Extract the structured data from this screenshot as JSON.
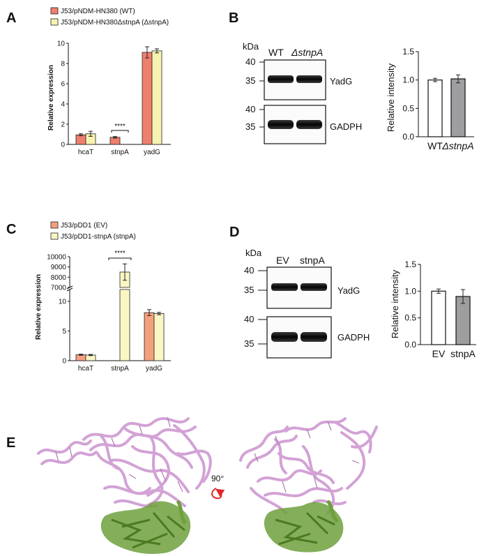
{
  "colors": {
    "wt_bar": "#ee7f6e",
    "mut_bar": "#f7f3b0",
    "ev_bar": "#f4a07e",
    "stnpA_bar": "#fbf7c5",
    "intensity_wt": "#ffffff",
    "intensity_mut": "#9e9ea0",
    "rna": "#d3a2d6",
    "protein": "#6ea03c",
    "rotate_arrow": "#e0262a"
  },
  "panels": {
    "A": {
      "letter": "A",
      "legend": [
        "J53/pNDM-HN380 (WT)",
        "J53/pNDM-HN380ΔstnpA (ΔstnpA)"
      ],
      "ylabel": "Relative expression",
      "significance": "****"
    },
    "B": {
      "letter": "B",
      "kda": "kDa",
      "lanes": [
        "WT",
        "ΔstnpA"
      ],
      "marker_top": [
        "40",
        "35"
      ],
      "marker_bottom": [
        "40",
        "35"
      ],
      "protein_top": "YadG",
      "protein_bottom": "GADPH",
      "ylabel": "Relative intensity"
    },
    "C": {
      "letter": "C",
      "legend": [
        "J53/pDD1 (EV)",
        "J53/pDD1-stnpA (stnpA)"
      ],
      "ylabel": "Relative expression",
      "significance": "****"
    },
    "D": {
      "letter": "D",
      "kda": "kDa",
      "lanes": [
        "EV",
        "stnpA"
      ],
      "marker_top": [
        "40",
        "35"
      ],
      "marker_bottom": [
        "40",
        "35"
      ],
      "protein_top": "YadG",
      "protein_bottom": "GADPH",
      "ylabel": "Relative intensity"
    },
    "E": {
      "letter": "E",
      "rotation": "90°"
    }
  },
  "chart_data": [
    {
      "panel": "A",
      "type": "bar",
      "categories": [
        "hcaT",
        "stnpA",
        "yadG"
      ],
      "series": [
        {
          "name": "J53/pNDM-HN380 (WT)",
          "values": [
            0.95,
            0.7,
            9.1
          ],
          "errors": [
            0.1,
            0.08,
            0.55
          ]
        },
        {
          "name": "J53/pNDM-HN380ΔstnpA (ΔstnpA)",
          "values": [
            1.05,
            0,
            9.25
          ],
          "errors": [
            0.25,
            0,
            0.2
          ]
        }
      ],
      "ylabel": "Relative expression",
      "yticks": [
        0,
        2,
        4,
        6,
        8,
        10
      ],
      "ylim": [
        0,
        10
      ]
    },
    {
      "panel": "B",
      "type": "bar",
      "categories": [
        "WT",
        "ΔstnpA"
      ],
      "values": [
        1.0,
        1.02
      ],
      "errors": [
        0.03,
        0.07
      ],
      "ylabel": "Relative intensity",
      "yticks": [
        0.0,
        0.5,
        1.0,
        1.5
      ],
      "ylim": [
        0,
        1.5
      ]
    },
    {
      "panel": "C",
      "type": "bar",
      "categories": [
        "hcaT",
        "stnpA",
        "yadG"
      ],
      "series": [
        {
          "name": "J53/pDD1 (EV)",
          "values": [
            1.0,
            0,
            8.1
          ],
          "errors": [
            0.1,
            0,
            0.5
          ]
        },
        {
          "name": "J53/pDD1-stnpA (stnpA)",
          "values": [
            0.95,
            8500,
            7.95
          ],
          "errors": [
            0.1,
            800,
            0.2
          ]
        }
      ],
      "ylabel": "Relative expression",
      "yticks_lower": [
        0,
        5,
        10
      ],
      "yticks_upper": [
        7000,
        8000,
        9000,
        10000
      ],
      "ylim_lower": [
        0,
        12
      ],
      "ylim_upper": [
        7000,
        10000
      ],
      "axis_break": true
    },
    {
      "panel": "D",
      "type": "bar",
      "categories": [
        "EV",
        "stnpA"
      ],
      "values": [
        1.0,
        0.9
      ],
      "errors": [
        0.04,
        0.13
      ],
      "ylabel": "Relative intensity",
      "yticks": [
        0.0,
        0.5,
        1.0,
        1.5
      ],
      "ylim": [
        0,
        1.5
      ]
    }
  ]
}
